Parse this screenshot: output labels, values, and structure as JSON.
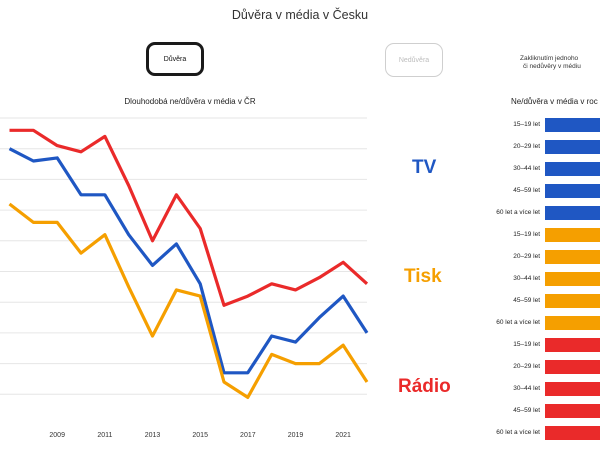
{
  "page_title": "Důvěra v média v Česku",
  "buttons": {
    "trust": "Důvěra",
    "distrust": "Nedůvěra"
  },
  "hint": {
    "line1": "Zakliknutím jednoho",
    "line2": "či nedůvěry v médiu"
  },
  "right_panel": {
    "title": "Ne/důvěra v média v roc",
    "groups": [
      {
        "name": "TV",
        "color": "#1f57c3",
        "rows": [
          "15–19 let",
          "20–29 let",
          "30–44 let",
          "45–59 let",
          "60 let a více let"
        ]
      },
      {
        "name": "Tisk",
        "color": "#f59f00",
        "rows": [
          "15–19 let",
          "20–29 let",
          "30–44 let",
          "45–59 let",
          "60 let a více let"
        ]
      },
      {
        "name": "Rádio",
        "color": "#ea2a2a",
        "rows": [
          "15–19 let",
          "20–29 let",
          "30–44 let",
          "45–59 let",
          "60 let a více let"
        ]
      }
    ]
  },
  "colors": {
    "tv": "#1f57c3",
    "tisk": "#f59f00",
    "radio": "#ea2a2a",
    "grid": "#e6e6e6"
  },
  "chart_data": {
    "type": "line",
    "title": "Dlouhodobá ne/důvěra v média v ČR",
    "x": [
      2007,
      2008,
      2009,
      2010,
      2011,
      2012,
      2013,
      2014,
      2015,
      2016,
      2017,
      2018,
      2019,
      2020,
      2021,
      2022
    ],
    "x_ticks": [
      "2009",
      "2011",
      "2013",
      "2015",
      "2017",
      "2019",
      "2021"
    ],
    "xlim": [
      2006.6,
      2022.0
    ],
    "ylim": [
      0,
      10
    ],
    "grid": "horizontal",
    "series": [
      {
        "key": "radio",
        "values": [
          9.6,
          9.6,
          9.1,
          8.9,
          9.4,
          7.8,
          6.0,
          7.5,
          6.4,
          3.9,
          4.2,
          4.6,
          4.4,
          4.8,
          5.3,
          4.6
        ]
      },
      {
        "key": "tv",
        "values": [
          9.0,
          8.6,
          8.7,
          7.5,
          7.5,
          6.2,
          5.2,
          5.9,
          4.6,
          1.7,
          1.7,
          2.9,
          2.7,
          3.5,
          4.2,
          3.0
        ]
      },
      {
        "key": "tisk",
        "values": [
          7.2,
          6.6,
          6.6,
          5.6,
          6.2,
          4.5,
          2.9,
          4.4,
          4.2,
          1.4,
          0.9,
          2.3,
          2.0,
          2.0,
          2.6,
          1.4
        ]
      }
    ]
  }
}
